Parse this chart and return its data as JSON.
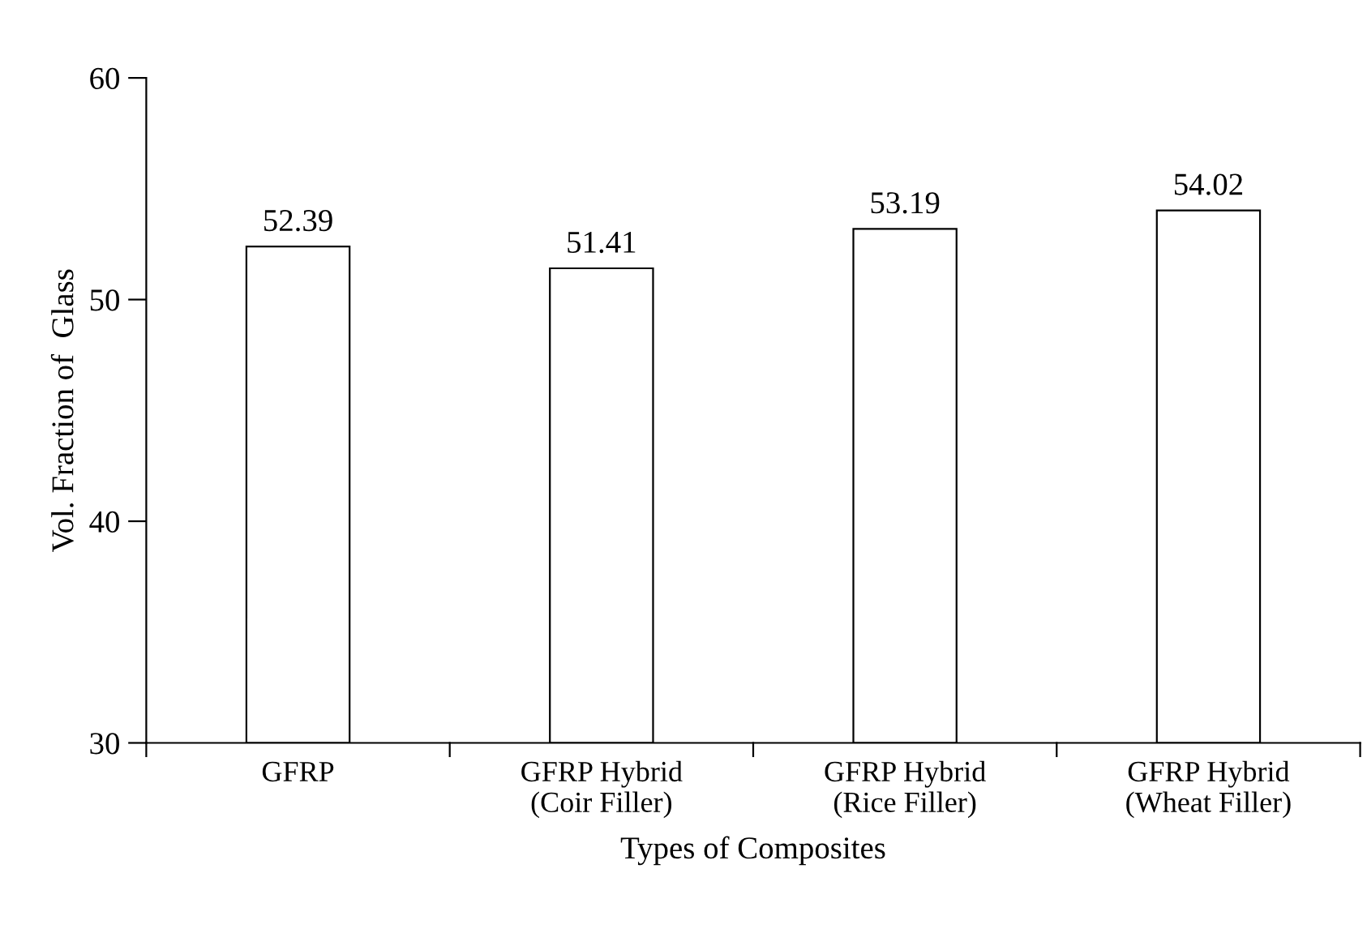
{
  "chart_data": {
    "type": "bar",
    "categories": [
      "GFRP",
      "GFRP Hybrid\n(Coir Filler)",
      "GFRP Hybrid\n(Rice Filler)",
      "GFRP Hybrid\n(Wheat Filler)"
    ],
    "values": [
      52.39,
      51.41,
      53.19,
      54.02
    ],
    "color": "#ffffff",
    "xlabel": "Types of Composites",
    "ylabel": "Vol. Fraction of  Glass",
    "ylim": [
      30,
      60
    ],
    "yticks": [
      30,
      40,
      50,
      60
    ],
    "data_labels": true,
    "grid": false,
    "legend": false
  }
}
